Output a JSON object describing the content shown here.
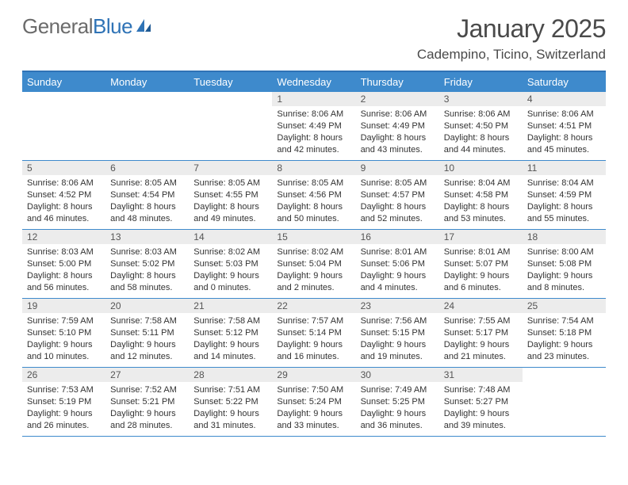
{
  "logo": {
    "part1": "General",
    "part2": "Blue"
  },
  "title": "January 2025",
  "location": "Cadempino, Ticino, Switzerland",
  "colors": {
    "header_bg": "#3e8acc",
    "border": "#2f73b6",
    "day_bg": "#ececec",
    "text": "#333333",
    "logo_gray": "#6b6b6b",
    "logo_blue": "#2f73b6"
  },
  "day_headers": [
    "Sunday",
    "Monday",
    "Tuesday",
    "Wednesday",
    "Thursday",
    "Friday",
    "Saturday"
  ],
  "weeks": [
    [
      {
        "day": "",
        "sunrise": "",
        "sunset": "",
        "daylight1": "",
        "daylight2": ""
      },
      {
        "day": "",
        "sunrise": "",
        "sunset": "",
        "daylight1": "",
        "daylight2": ""
      },
      {
        "day": "",
        "sunrise": "",
        "sunset": "",
        "daylight1": "",
        "daylight2": ""
      },
      {
        "day": "1",
        "sunrise": "Sunrise: 8:06 AM",
        "sunset": "Sunset: 4:49 PM",
        "daylight1": "Daylight: 8 hours",
        "daylight2": "and 42 minutes."
      },
      {
        "day": "2",
        "sunrise": "Sunrise: 8:06 AM",
        "sunset": "Sunset: 4:49 PM",
        "daylight1": "Daylight: 8 hours",
        "daylight2": "and 43 minutes."
      },
      {
        "day": "3",
        "sunrise": "Sunrise: 8:06 AM",
        "sunset": "Sunset: 4:50 PM",
        "daylight1": "Daylight: 8 hours",
        "daylight2": "and 44 minutes."
      },
      {
        "day": "4",
        "sunrise": "Sunrise: 8:06 AM",
        "sunset": "Sunset: 4:51 PM",
        "daylight1": "Daylight: 8 hours",
        "daylight2": "and 45 minutes."
      }
    ],
    [
      {
        "day": "5",
        "sunrise": "Sunrise: 8:06 AM",
        "sunset": "Sunset: 4:52 PM",
        "daylight1": "Daylight: 8 hours",
        "daylight2": "and 46 minutes."
      },
      {
        "day": "6",
        "sunrise": "Sunrise: 8:05 AM",
        "sunset": "Sunset: 4:54 PM",
        "daylight1": "Daylight: 8 hours",
        "daylight2": "and 48 minutes."
      },
      {
        "day": "7",
        "sunrise": "Sunrise: 8:05 AM",
        "sunset": "Sunset: 4:55 PM",
        "daylight1": "Daylight: 8 hours",
        "daylight2": "and 49 minutes."
      },
      {
        "day": "8",
        "sunrise": "Sunrise: 8:05 AM",
        "sunset": "Sunset: 4:56 PM",
        "daylight1": "Daylight: 8 hours",
        "daylight2": "and 50 minutes."
      },
      {
        "day": "9",
        "sunrise": "Sunrise: 8:05 AM",
        "sunset": "Sunset: 4:57 PM",
        "daylight1": "Daylight: 8 hours",
        "daylight2": "and 52 minutes."
      },
      {
        "day": "10",
        "sunrise": "Sunrise: 8:04 AM",
        "sunset": "Sunset: 4:58 PM",
        "daylight1": "Daylight: 8 hours",
        "daylight2": "and 53 minutes."
      },
      {
        "day": "11",
        "sunrise": "Sunrise: 8:04 AM",
        "sunset": "Sunset: 4:59 PM",
        "daylight1": "Daylight: 8 hours",
        "daylight2": "and 55 minutes."
      }
    ],
    [
      {
        "day": "12",
        "sunrise": "Sunrise: 8:03 AM",
        "sunset": "Sunset: 5:00 PM",
        "daylight1": "Daylight: 8 hours",
        "daylight2": "and 56 minutes."
      },
      {
        "day": "13",
        "sunrise": "Sunrise: 8:03 AM",
        "sunset": "Sunset: 5:02 PM",
        "daylight1": "Daylight: 8 hours",
        "daylight2": "and 58 minutes."
      },
      {
        "day": "14",
        "sunrise": "Sunrise: 8:02 AM",
        "sunset": "Sunset: 5:03 PM",
        "daylight1": "Daylight: 9 hours",
        "daylight2": "and 0 minutes."
      },
      {
        "day": "15",
        "sunrise": "Sunrise: 8:02 AM",
        "sunset": "Sunset: 5:04 PM",
        "daylight1": "Daylight: 9 hours",
        "daylight2": "and 2 minutes."
      },
      {
        "day": "16",
        "sunrise": "Sunrise: 8:01 AM",
        "sunset": "Sunset: 5:06 PM",
        "daylight1": "Daylight: 9 hours",
        "daylight2": "and 4 minutes."
      },
      {
        "day": "17",
        "sunrise": "Sunrise: 8:01 AM",
        "sunset": "Sunset: 5:07 PM",
        "daylight1": "Daylight: 9 hours",
        "daylight2": "and 6 minutes."
      },
      {
        "day": "18",
        "sunrise": "Sunrise: 8:00 AM",
        "sunset": "Sunset: 5:08 PM",
        "daylight1": "Daylight: 9 hours",
        "daylight2": "and 8 minutes."
      }
    ],
    [
      {
        "day": "19",
        "sunrise": "Sunrise: 7:59 AM",
        "sunset": "Sunset: 5:10 PM",
        "daylight1": "Daylight: 9 hours",
        "daylight2": "and 10 minutes."
      },
      {
        "day": "20",
        "sunrise": "Sunrise: 7:58 AM",
        "sunset": "Sunset: 5:11 PM",
        "daylight1": "Daylight: 9 hours",
        "daylight2": "and 12 minutes."
      },
      {
        "day": "21",
        "sunrise": "Sunrise: 7:58 AM",
        "sunset": "Sunset: 5:12 PM",
        "daylight1": "Daylight: 9 hours",
        "daylight2": "and 14 minutes."
      },
      {
        "day": "22",
        "sunrise": "Sunrise: 7:57 AM",
        "sunset": "Sunset: 5:14 PM",
        "daylight1": "Daylight: 9 hours",
        "daylight2": "and 16 minutes."
      },
      {
        "day": "23",
        "sunrise": "Sunrise: 7:56 AM",
        "sunset": "Sunset: 5:15 PM",
        "daylight1": "Daylight: 9 hours",
        "daylight2": "and 19 minutes."
      },
      {
        "day": "24",
        "sunrise": "Sunrise: 7:55 AM",
        "sunset": "Sunset: 5:17 PM",
        "daylight1": "Daylight: 9 hours",
        "daylight2": "and 21 minutes."
      },
      {
        "day": "25",
        "sunrise": "Sunrise: 7:54 AM",
        "sunset": "Sunset: 5:18 PM",
        "daylight1": "Daylight: 9 hours",
        "daylight2": "and 23 minutes."
      }
    ],
    [
      {
        "day": "26",
        "sunrise": "Sunrise: 7:53 AM",
        "sunset": "Sunset: 5:19 PM",
        "daylight1": "Daylight: 9 hours",
        "daylight2": "and 26 minutes."
      },
      {
        "day": "27",
        "sunrise": "Sunrise: 7:52 AM",
        "sunset": "Sunset: 5:21 PM",
        "daylight1": "Daylight: 9 hours",
        "daylight2": "and 28 minutes."
      },
      {
        "day": "28",
        "sunrise": "Sunrise: 7:51 AM",
        "sunset": "Sunset: 5:22 PM",
        "daylight1": "Daylight: 9 hours",
        "daylight2": "and 31 minutes."
      },
      {
        "day": "29",
        "sunrise": "Sunrise: 7:50 AM",
        "sunset": "Sunset: 5:24 PM",
        "daylight1": "Daylight: 9 hours",
        "daylight2": "and 33 minutes."
      },
      {
        "day": "30",
        "sunrise": "Sunrise: 7:49 AM",
        "sunset": "Sunset: 5:25 PM",
        "daylight1": "Daylight: 9 hours",
        "daylight2": "and 36 minutes."
      },
      {
        "day": "31",
        "sunrise": "Sunrise: 7:48 AM",
        "sunset": "Sunset: 5:27 PM",
        "daylight1": "Daylight: 9 hours",
        "daylight2": "and 39 minutes."
      },
      {
        "day": "",
        "sunrise": "",
        "sunset": "",
        "daylight1": "",
        "daylight2": ""
      }
    ]
  ]
}
